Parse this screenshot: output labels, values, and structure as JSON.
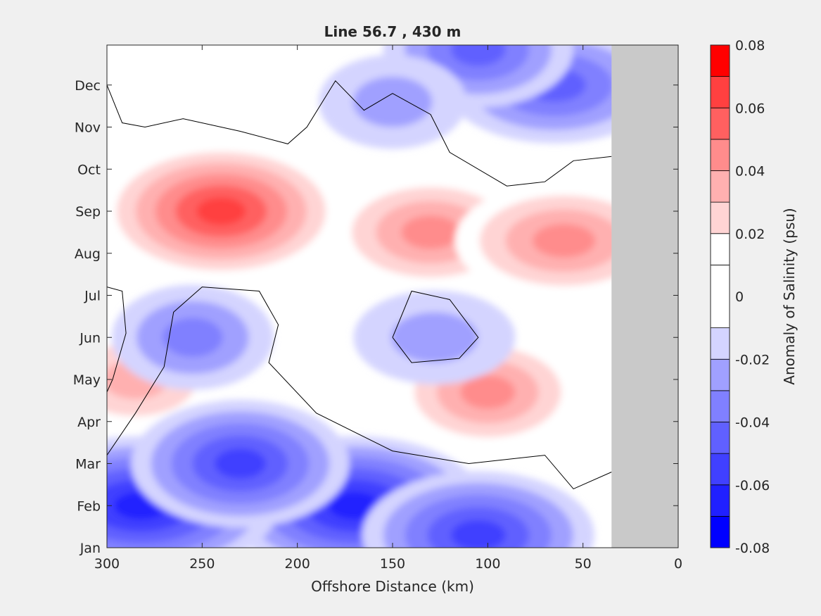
{
  "chart_data": {
    "type": "heatmap",
    "subtype": "filled-contour",
    "title": "Line 56.7 , 430 m",
    "xlabel": "Offshore Distance (km)",
    "ylabel": "",
    "xlim": [
      300,
      0
    ],
    "x_direction": "reversed",
    "x_ticks": [
      300,
      250,
      200,
      150,
      100,
      50,
      0
    ],
    "x_tick_labels": [
      "300",
      "250",
      "200",
      "150",
      "100",
      "50",
      "0"
    ],
    "y_ticks": [
      0,
      1,
      2,
      3,
      4,
      5,
      6,
      7,
      8,
      9,
      10,
      11
    ],
    "y_tick_labels": [
      "Jan",
      "Feb",
      "Mar",
      "Apr",
      "May",
      "Jun",
      "Jul",
      "Aug",
      "Sep",
      "Oct",
      "Nov",
      "Dec"
    ],
    "ylim": [
      0,
      11.95
    ],
    "no_data_region_km": [
      35,
      0
    ],
    "no_data_color": "#c9c9c9",
    "colorbar": {
      "label": "Anomaly of Salinity (psu)",
      "range": [
        -0.08,
        0.08
      ],
      "ticks": [
        -0.08,
        -0.06,
        -0.04,
        -0.02,
        0,
        0.02,
        0.04,
        0.06,
        0.08
      ],
      "tick_labels": [
        "-0.08",
        "-0.06",
        "-0.04",
        "-0.02",
        "0",
        "0.02",
        "0.04",
        "0.06",
        "0.08"
      ],
      "levels": [
        -0.08,
        -0.07,
        -0.06,
        -0.05,
        -0.04,
        -0.03,
        -0.02,
        -0.01,
        0.01,
        0.02,
        0.03,
        0.04,
        0.05,
        0.06,
        0.07,
        0.08
      ],
      "colors": [
        "#0000ff",
        "#2020ff",
        "#4040ff",
        "#6060ff",
        "#8080ff",
        "#a0a0ff",
        "#d4d4ff",
        "#ffffff",
        "#ffffff",
        "#ffd4d4",
        "#ffb0b0",
        "#ff8c8c",
        "#ff6060",
        "#ff4040",
        "#ff0000"
      ]
    },
    "zero_contour": true,
    "anomaly_features": [
      {
        "name": "September positive maximum",
        "x_km": 240,
        "month": 8.0,
        "value": 0.06
      },
      {
        "name": "Aug-Sep positive band",
        "x_km": 130,
        "month": 7.5,
        "value": 0.04
      },
      {
        "name": "Aug-Sep nearshore positive",
        "x_km": 60,
        "month": 7.3,
        "value": 0.04
      },
      {
        "name": "Apr-May positive core",
        "x_km": 100,
        "month": 3.7,
        "value": 0.04
      },
      {
        "name": "May offshore positive",
        "x_km": 285,
        "month": 4.0,
        "value": 0.03
      },
      {
        "name": "June negative patch",
        "x_km": 128,
        "month": 5.0,
        "value": -0.02
      },
      {
        "name": "June offshore negative",
        "x_km": 255,
        "month": 5.0,
        "value": -0.03
      },
      {
        "name": "February negative minimum",
        "x_km": 170,
        "month": 1.0,
        "value": -0.06
      },
      {
        "name": "February offshore negative",
        "x_km": 282,
        "month": 1.0,
        "value": -0.06
      },
      {
        "name": "March negative",
        "x_km": 230,
        "month": 2.0,
        "value": -0.05
      },
      {
        "name": "January nearshore negative",
        "x_km": 105,
        "month": 0.3,
        "value": -0.05
      },
      {
        "name": "Nov-Dec nearshore negative",
        "x_km": 65,
        "month": 11.0,
        "value": -0.04
      },
      {
        "name": "December top negative",
        "x_km": 105,
        "month": 11.85,
        "value": -0.04
      },
      {
        "name": "December small negative",
        "x_km": 150,
        "month": 10.6,
        "value": -0.02
      }
    ]
  }
}
